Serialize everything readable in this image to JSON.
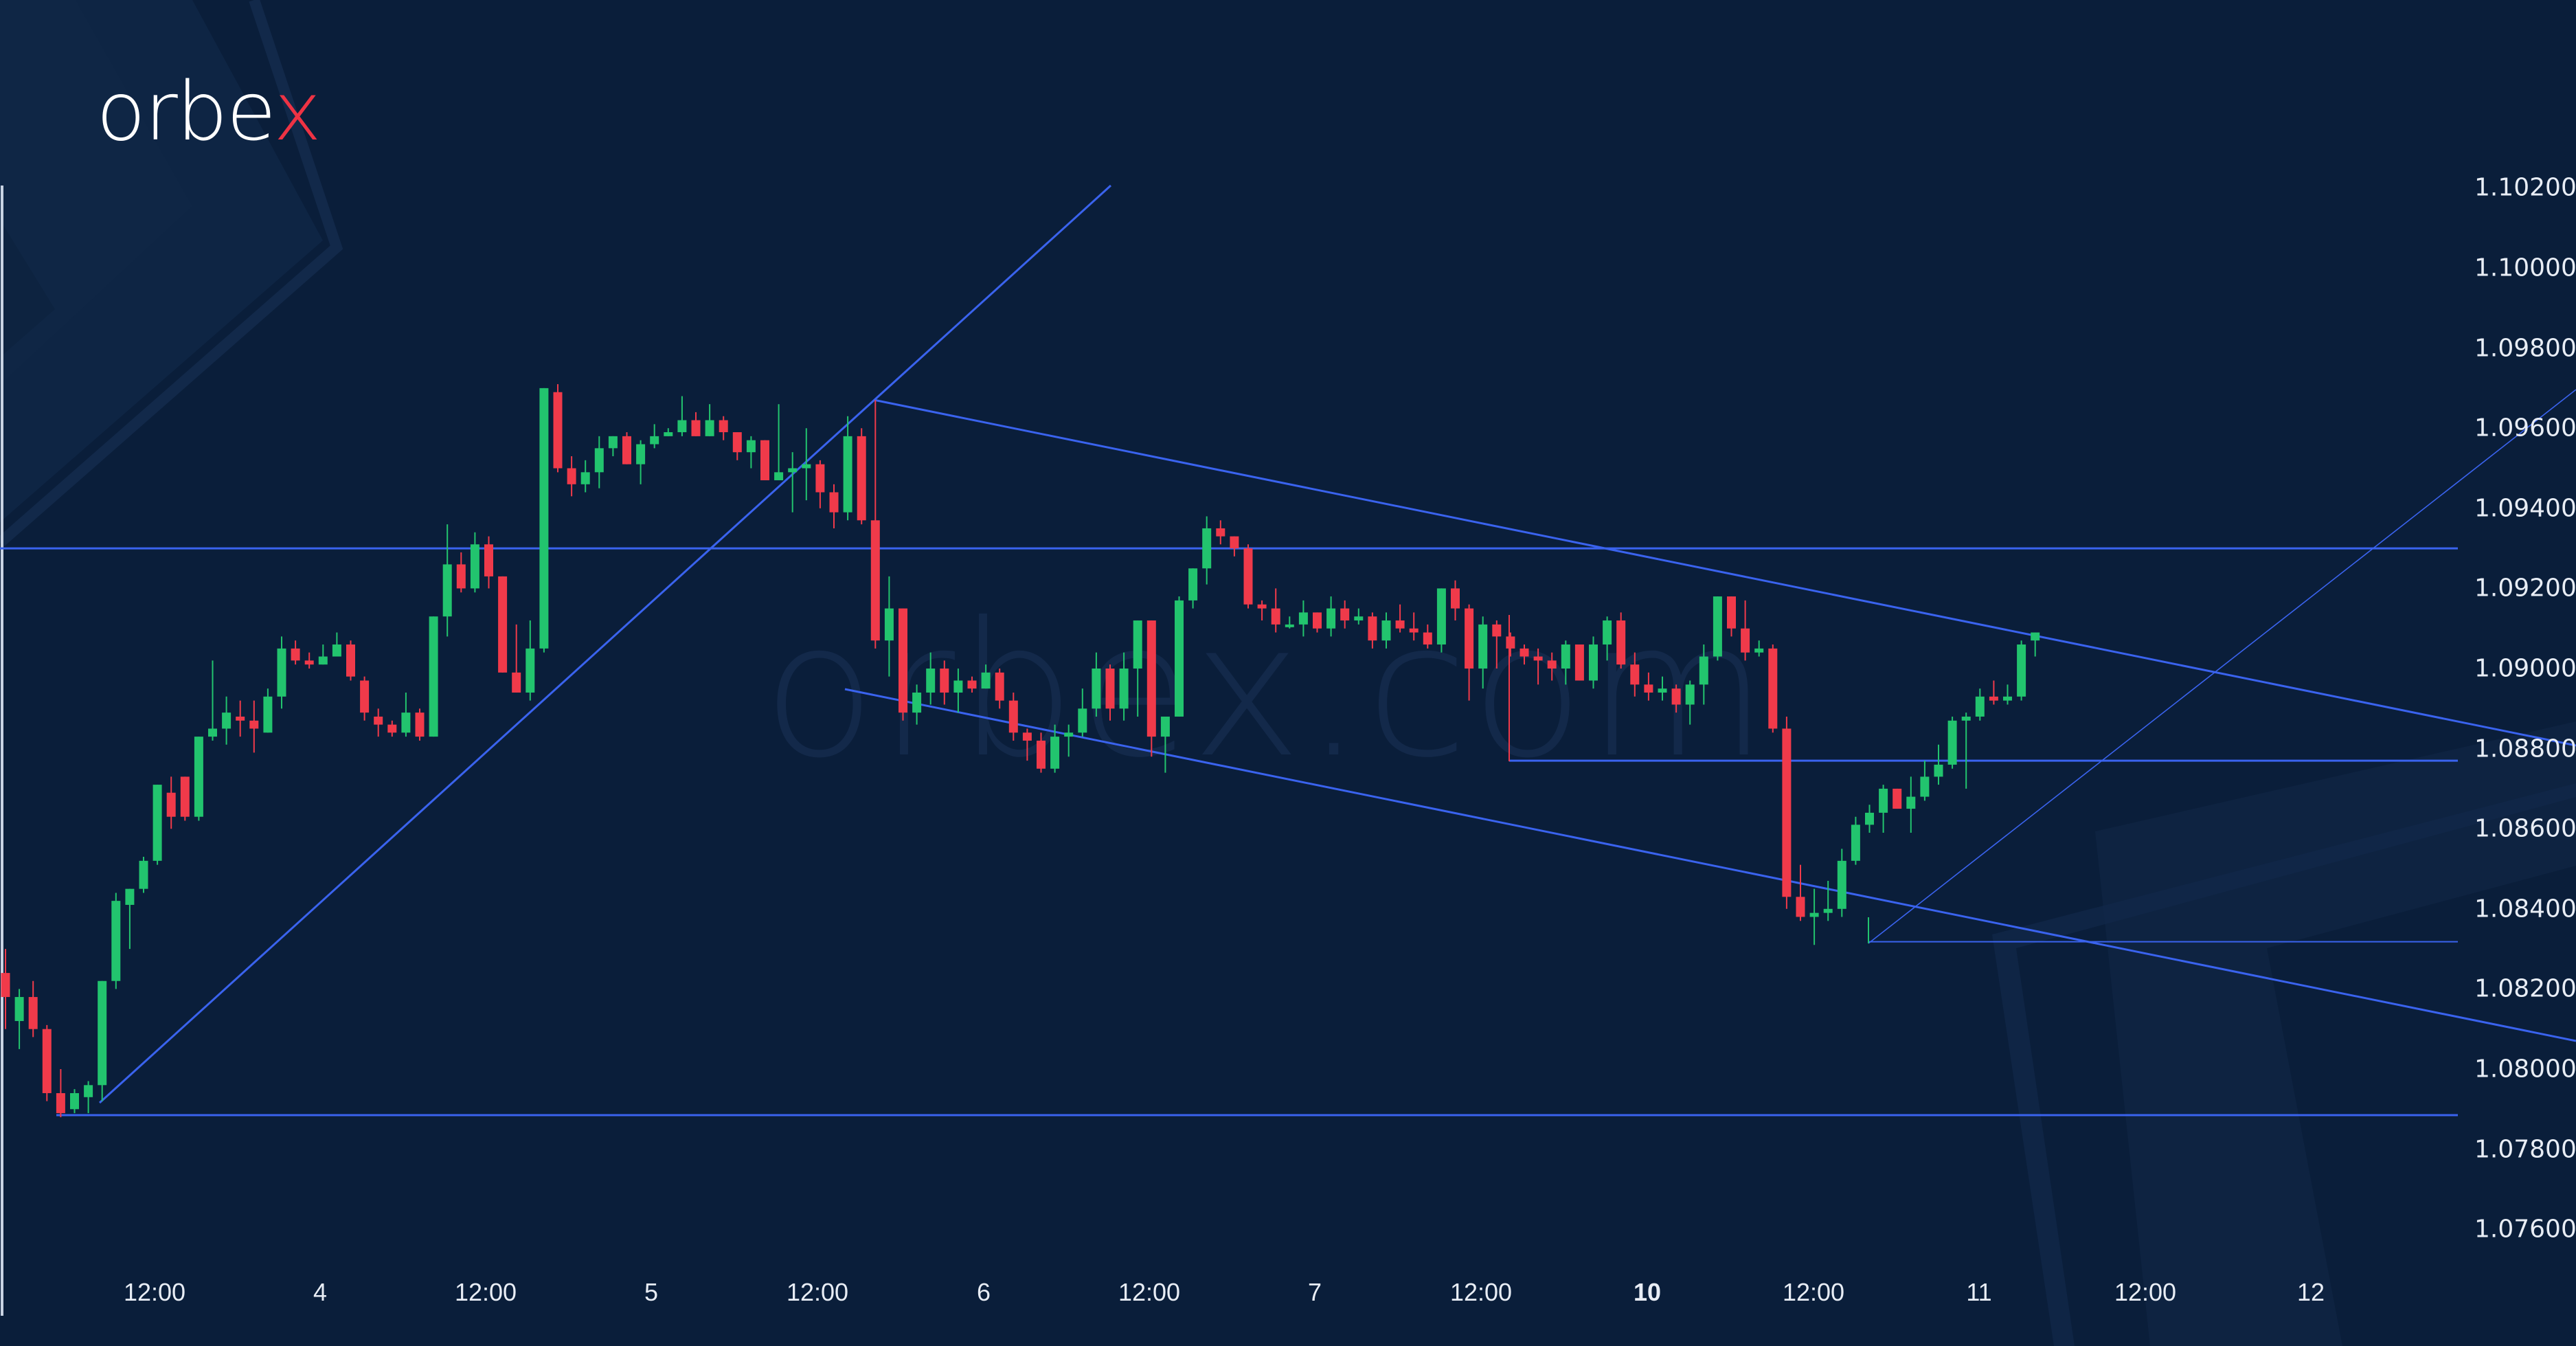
{
  "brand": {
    "logo_main": "orbe",
    "logo_accent": "x",
    "watermark": "orbex.com",
    "accent_color": "#ee3344"
  },
  "colors": {
    "background": "#0a1e3a",
    "bull": "#22c46e",
    "bear": "#f03a4a",
    "line": "#3a63ee",
    "text": "#e8edf5"
  },
  "chart_data": {
    "type": "candlestick",
    "title": "",
    "instrument_hint": "EUR/USD-like price chart",
    "xlabel": "",
    "ylabel": "",
    "ylim": [
      1.0755,
      1.1022
    ],
    "y_ticks": [
      "1.10200",
      "1.10000",
      "1.09800",
      "1.09600",
      "1.09400",
      "1.09200",
      "1.09000",
      "1.08800",
      "1.08600",
      "1.08400",
      "1.08200",
      "1.08000",
      "1.07800",
      "1.07600"
    ],
    "x_ticks": [
      {
        "label": "12:00",
        "x": 225,
        "bold": false
      },
      {
        "label": "4",
        "x": 466,
        "bold": false
      },
      {
        "label": "12:00",
        "x": 707,
        "bold": false
      },
      {
        "label": "5",
        "x": 948,
        "bold": false
      },
      {
        "label": "12:00",
        "x": 1190,
        "bold": false
      },
      {
        "label": "6",
        "x": 1432,
        "bold": false
      },
      {
        "label": "12:00",
        "x": 1673,
        "bold": false
      },
      {
        "label": "7",
        "x": 1914,
        "bold": false
      },
      {
        "label": "12:00",
        "x": 2156,
        "bold": false
      },
      {
        "label": "10",
        "x": 2398,
        "bold": true
      },
      {
        "label": "12:00",
        "x": 2640,
        "bold": false
      },
      {
        "label": "11",
        "x": 2881,
        "bold": false
      },
      {
        "label": "12:00",
        "x": 3123,
        "bold": false
      },
      {
        "label": "12",
        "x": 3364,
        "bold": false
      }
    ],
    "grid": false,
    "candles": [
      [
        1.0824,
        1.083,
        1.081,
        1.0818
      ],
      [
        1.0812,
        1.082,
        1.0805,
        1.0818
      ],
      [
        1.0818,
        1.0822,
        1.0808,
        1.081
      ],
      [
        1.081,
        1.0811,
        1.0792,
        1.0794
      ],
      [
        1.0794,
        1.08,
        1.0788,
        1.0789
      ],
      [
        1.079,
        1.0795,
        1.0789,
        1.0794
      ],
      [
        1.0793,
        1.0797,
        1.0789,
        1.0796
      ],
      [
        1.0796,
        1.0822,
        1.0792,
        1.0822
      ],
      [
        1.0822,
        1.0844,
        1.082,
        1.0842
      ],
      [
        1.0841,
        1.0845,
        1.083,
        1.0845
      ],
      [
        1.0845,
        1.0853,
        1.0844,
        1.0852
      ],
      [
        1.0852,
        1.0871,
        1.0851,
        1.0871
      ],
      [
        1.0869,
        1.0873,
        1.086,
        1.0863
      ],
      [
        1.0873,
        1.0863,
        1.0862,
        1.0863
      ],
      [
        1.0863,
        1.0883,
        1.0862,
        1.0883
      ],
      [
        1.0883,
        1.0902,
        1.0882,
        1.0885
      ],
      [
        1.0885,
        1.0893,
        1.0881,
        1.0889
      ],
      [
        1.0888,
        1.0892,
        1.0883,
        1.0887
      ],
      [
        1.0887,
        1.0892,
        1.0879,
        1.0885
      ],
      [
        1.0884,
        1.0895,
        1.0885,
        1.0893
      ],
      [
        1.0893,
        1.0908,
        1.089,
        1.0905
      ],
      [
        1.0905,
        1.0907,
        1.0901,
        1.0902
      ],
      [
        1.0902,
        1.0904,
        1.09,
        1.0901
      ],
      [
        1.0901,
        1.0906,
        1.0901,
        1.0903
      ],
      [
        1.0903,
        1.0909,
        1.0903,
        1.0906
      ],
      [
        1.0906,
        1.0907,
        1.0897,
        1.0898
      ],
      [
        1.0897,
        1.0898,
        1.0887,
        1.0889
      ],
      [
        1.0888,
        1.089,
        1.0883,
        1.0886
      ],
      [
        1.0886,
        1.0887,
        1.0883,
        1.0884
      ],
      [
        1.0884,
        1.0894,
        1.0883,
        1.0889
      ],
      [
        1.0889,
        1.089,
        1.0882,
        1.0883
      ],
      [
        1.0883,
        1.0913,
        1.0883,
        1.0913
      ],
      [
        1.0913,
        1.0936,
        1.0908,
        1.0926
      ],
      [
        1.0926,
        1.0929,
        1.0919,
        1.092
      ],
      [
        1.092,
        1.0934,
        1.0919,
        1.0931
      ],
      [
        1.0931,
        1.0933,
        1.092,
        1.0923
      ],
      [
        1.0923,
        1.0923,
        1.0899,
        1.0899
      ],
      [
        1.0899,
        1.0911,
        1.0898,
        1.0894
      ],
      [
        1.0894,
        1.0912,
        1.0892,
        1.0905
      ],
      [
        1.0905,
        1.097,
        1.0904,
        1.097
      ],
      [
        1.0969,
        1.0971,
        1.0949,
        1.095
      ],
      [
        1.095,
        1.0953,
        1.0943,
        1.0946
      ],
      [
        1.0946,
        1.0952,
        1.0944,
        1.0949
      ],
      [
        1.0949,
        1.0958,
        1.0945,
        1.0955
      ],
      [
        1.0955,
        1.0958,
        1.0953,
        1.0958
      ],
      [
        1.0958,
        1.0959,
        1.0951,
        1.0951
      ],
      [
        1.0951,
        1.0957,
        1.0946,
        1.0956
      ],
      [
        1.0956,
        1.0961,
        1.0955,
        1.0958
      ],
      [
        1.0958,
        1.096,
        1.0958,
        1.0959
      ],
      [
        1.0959,
        1.0968,
        1.0958,
        1.0962
      ],
      [
        1.0962,
        1.0964,
        1.0958,
        1.0958
      ],
      [
        1.0958,
        1.0966,
        1.0958,
        1.0962
      ],
      [
        1.0962,
        1.0963,
        1.0957,
        1.0959
      ],
      [
        1.0959,
        1.0959,
        1.0952,
        1.0954
      ],
      [
        1.0954,
        1.0958,
        1.095,
        1.0957
      ],
      [
        1.0957,
        1.0957,
        1.0947,
        1.0947
      ],
      [
        1.0947,
        1.0966,
        1.0947,
        1.0949
      ],
      [
        1.0949,
        1.0954,
        1.0939,
        1.095
      ],
      [
        1.095,
        1.096,
        1.0942,
        1.0951
      ],
      [
        1.0951,
        1.0952,
        1.094,
        1.0944
      ],
      [
        1.0944,
        1.0946,
        1.0935,
        1.0939
      ],
      [
        1.0939,
        1.0963,
        1.0937,
        1.0958
      ],
      [
        1.0958,
        1.096,
        1.0936,
        1.0937
      ],
      [
        1.0937,
        1.0967,
        1.0905,
        1.0907
      ],
      [
        1.0907,
        1.0923,
        1.0898,
        1.0915
      ],
      [
        1.0915,
        1.0913,
        1.0887,
        1.0889
      ],
      [
        1.0889,
        1.0896,
        1.0886,
        1.0894
      ],
      [
        1.0894,
        1.0904,
        1.0891,
        1.09
      ],
      [
        1.09,
        1.0902,
        1.0891,
        1.0894
      ],
      [
        1.0894,
        1.09,
        1.0889,
        1.0897
      ],
      [
        1.0897,
        1.0898,
        1.0894,
        1.0895
      ],
      [
        1.0895,
        1.0901,
        1.0895,
        1.0899
      ],
      [
        1.0899,
        1.09,
        1.089,
        1.0892
      ],
      [
        1.0892,
        1.0894,
        1.0882,
        1.0884
      ],
      [
        1.0884,
        1.0885,
        1.0877,
        1.0882
      ],
      [
        1.0882,
        1.0884,
        1.0874,
        1.0875
      ],
      [
        1.0875,
        1.0886,
        1.0874,
        1.0883
      ],
      [
        1.0883,
        1.0886,
        1.0878,
        1.0884
      ],
      [
        1.0884,
        1.0895,
        1.0883,
        1.089
      ],
      [
        1.089,
        1.0904,
        1.0888,
        1.09
      ],
      [
        1.09,
        1.0901,
        1.0887,
        1.089
      ],
      [
        1.089,
        1.0904,
        1.0887,
        1.09
      ],
      [
        1.09,
        1.0912,
        1.0888,
        1.0912
      ],
      [
        1.0912,
        1.0912,
        1.0878,
        1.0883
      ],
      [
        1.0883,
        1.0888,
        1.0874,
        1.0888
      ],
      [
        1.0888,
        1.0918,
        1.0888,
        1.0917
      ],
      [
        1.0917,
        1.0924,
        1.0915,
        1.0925
      ],
      [
        1.0925,
        1.0938,
        1.0921,
        1.0935
      ],
      [
        1.0935,
        1.0937,
        1.0931,
        1.0933
      ],
      [
        1.0933,
        1.0933,
        1.0928,
        1.093
      ],
      [
        1.093,
        1.0931,
        1.0915,
        1.0916
      ],
      [
        1.0916,
        1.0917,
        1.0912,
        1.0915
      ],
      [
        1.0915,
        1.092,
        1.0909,
        1.0911
      ],
      [
        1.0911,
        1.0913,
        1.091,
        1.0911
      ],
      [
        1.0911,
        1.0917,
        1.0908,
        1.0914
      ],
      [
        1.0914,
        1.0914,
        1.0909,
        1.091
      ],
      [
        1.091,
        1.0918,
        1.0908,
        1.0915
      ],
      [
        1.0915,
        1.0917,
        1.091,
        1.0912
      ],
      [
        1.0912,
        1.0915,
        1.0911,
        1.0913
      ],
      [
        1.0913,
        1.0914,
        1.0905,
        1.0907
      ],
      [
        1.0907,
        1.0914,
        1.0905,
        1.0912
      ],
      [
        1.0912,
        1.0916,
        1.0909,
        1.091
      ],
      [
        1.091,
        1.0914,
        1.0907,
        1.0909
      ],
      [
        1.0909,
        1.0911,
        1.0905,
        1.0906
      ],
      [
        1.0906,
        1.092,
        1.0904,
        1.092
      ],
      [
        1.092,
        1.0922,
        1.0912,
        1.0915
      ],
      [
        1.0915,
        1.0916,
        1.0892,
        1.09
      ],
      [
        1.09,
        1.0913,
        1.0895,
        1.0911
      ],
      [
        1.0911,
        1.0912,
        1.09,
        1.0908
      ],
      [
        1.0908,
        1.0909,
        1.0903,
        1.0905
      ],
      [
        1.0905,
        1.0906,
        1.0901,
        1.0903
      ],
      [
        1.0903,
        1.0905,
        1.0896,
        1.0902
      ],
      [
        1.0902,
        1.0904,
        1.0897,
        1.09
      ],
      [
        1.09,
        1.0907,
        1.0896,
        1.0906
      ],
      [
        1.0906,
        1.0906,
        1.0897,
        1.0897
      ],
      [
        1.0897,
        1.0908,
        1.0895,
        1.0906
      ],
      [
        1.0906,
        1.0913,
        1.0902,
        1.0912
      ],
      [
        1.0912,
        1.0914,
        1.09,
        1.0901
      ],
      [
        1.0901,
        1.0904,
        1.0893,
        1.0896
      ],
      [
        1.0896,
        1.0899,
        1.0892,
        1.0894
      ],
      [
        1.0894,
        1.0898,
        1.0892,
        1.0895
      ],
      [
        1.0895,
        1.0896,
        1.0889,
        1.0891
      ],
      [
        1.0891,
        1.0897,
        1.0886,
        1.0896
      ],
      [
        1.0896,
        1.0906,
        1.0891,
        1.0903
      ],
      [
        1.0903,
        1.0918,
        1.0902,
        1.0918
      ],
      [
        1.0918,
        1.0918,
        1.0908,
        1.091
      ],
      [
        1.091,
        1.0917,
        1.0902,
        1.0904
      ],
      [
        1.0904,
        1.0907,
        1.0903,
        1.0905
      ],
      [
        1.0905,
        1.0906,
        1.0884,
        1.0885
      ],
      [
        1.0885,
        1.0888,
        1.084,
        1.0843
      ],
      [
        1.0843,
        1.0851,
        1.0837,
        1.0838
      ],
      [
        1.0838,
        1.0845,
        1.0831,
        1.0839
      ],
      [
        1.0839,
        1.0847,
        1.0837,
        1.084
      ],
      [
        1.084,
        1.0855,
        1.0838,
        1.0852
      ],
      [
        1.0852,
        1.0863,
        1.0851,
        1.0861
      ],
      [
        1.0861,
        1.0866,
        1.0859,
        1.0864
      ],
      [
        1.0864,
        1.0871,
        1.0859,
        1.087
      ],
      [
        1.087,
        1.087,
        1.0865,
        1.0865
      ],
      [
        1.0865,
        1.0873,
        1.0859,
        1.0868
      ],
      [
        1.0868,
        1.0877,
        1.0867,
        1.0873
      ],
      [
        1.0873,
        1.0881,
        1.0871,
        1.0876
      ],
      [
        1.0876,
        1.0888,
        1.0875,
        1.0887
      ],
      [
        1.0887,
        1.0889,
        1.087,
        1.0888
      ],
      [
        1.0888,
        1.0895,
        1.0887,
        1.0893
      ],
      [
        1.0893,
        1.0897,
        1.0891,
        1.0892
      ],
      [
        1.0892,
        1.0896,
        1.0891,
        1.0893
      ],
      [
        1.0893,
        1.0907,
        1.0892,
        1.0906
      ],
      [
        1.0907,
        1.0909,
        1.0903,
        1.0909
      ]
    ],
    "candle_x_start": 8,
    "candle_spacing": 20.1,
    "annotations": {
      "hlines": [
        {
          "price": 1.093,
          "x1": 0,
          "x2": 3578,
          "width": 3
        },
        {
          "price": 1.07885,
          "x1": 82,
          "x2": 3578,
          "width": 3
        },
        {
          "price": 1.0877,
          "x1": 2197,
          "x2": 3578,
          "width": 3
        },
        {
          "price": 1.08318,
          "x1": 2720,
          "x2": 3578,
          "width": 2
        }
      ],
      "trendlines": [
        {
          "x1": 145,
          "y1": 1605,
          "x2": 1617,
          "y2": 270,
          "width": 3
        },
        {
          "x1": 1272,
          "y1": 582,
          "x2": 3750,
          "y2": 1085,
          "width": 3
        },
        {
          "x1": 1230,
          "y1": 1003,
          "x2": 3750,
          "y2": 1515,
          "width": 3
        },
        {
          "x1": 2720,
          "y1": 1373,
          "x2": 3750,
          "y2": 567,
          "width": 1.6
        }
      ],
      "vlines": [
        {
          "x": 2197,
          "y1": 895,
          "y2": 1108,
          "color": "#f03a4a",
          "width": 2
        },
        {
          "x": 2720,
          "y1": 1335,
          "y2": 1373,
          "color": "#22c46e",
          "width": 2
        }
      ]
    }
  }
}
